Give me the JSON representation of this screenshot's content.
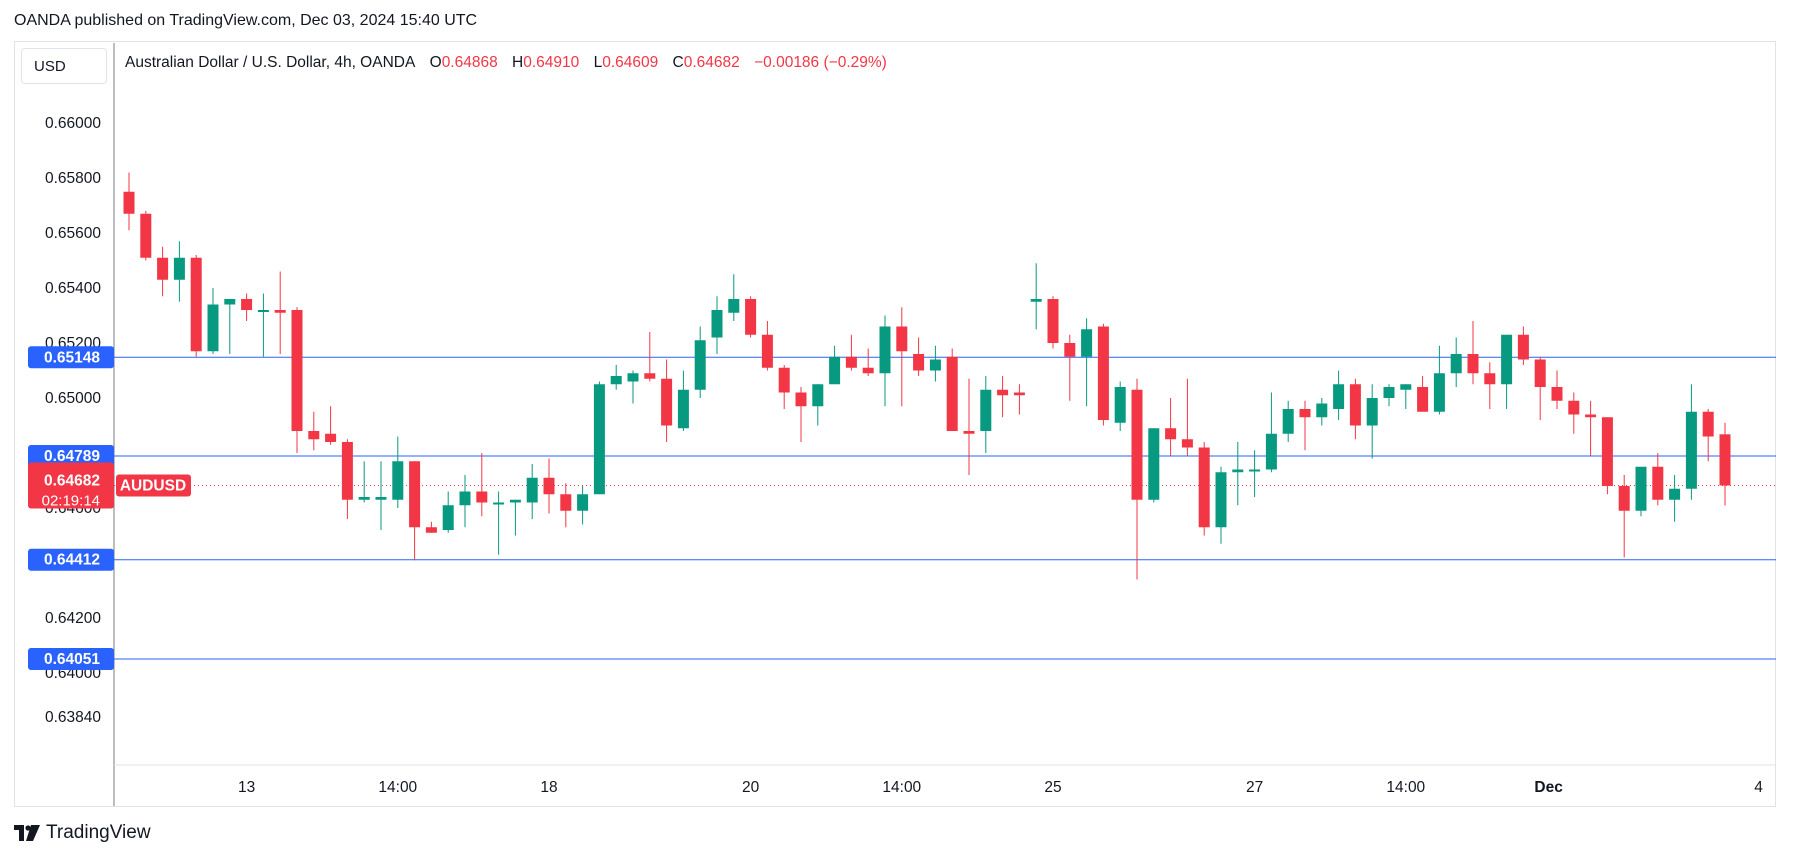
{
  "header": {
    "caption": "OANDA published on TradingView.com, Dec 03, 2024 15:40 UTC"
  },
  "toolbar": {
    "currency_label": "USD"
  },
  "legend": {
    "title": "Australian Dollar / U.S. Dollar, 4h, OANDA",
    "o_label": "O",
    "o_value": "0.64868",
    "h_label": "H",
    "h_value": "0.64910",
    "l_label": "L",
    "l_value": "0.64609",
    "c_label": "C",
    "c_value": "0.64682",
    "change": "−0.00186 (−0.29%)"
  },
  "footer": {
    "brand": "TradingView"
  },
  "colors": {
    "up": "#089981",
    "down": "#f23645",
    "hline": "#2962ff",
    "badge": "#2962ff",
    "price_badge": "#f23645",
    "axis_text": "#131722"
  },
  "chart_data": {
    "type": "candlestick",
    "symbol": "AUDUSD",
    "interval": "4h",
    "ylim": [
      0.6368,
      0.6617
    ],
    "y_ticks": [
      "0.66000",
      "0.65800",
      "0.65600",
      "0.65400",
      "0.65200",
      "0.65000",
      "0.64800",
      "0.64600",
      "0.64400",
      "0.64200",
      "0.64000",
      "0.63840"
    ],
    "y_tick_values": [
      0.66,
      0.658,
      0.656,
      0.654,
      0.652,
      0.65,
      0.648,
      0.646,
      0.644,
      0.642,
      0.64,
      0.6384
    ],
    "x_ticks": [
      {
        "label": "13",
        "index": 7,
        "bold": false
      },
      {
        "label": "14:00",
        "index": 16,
        "bold": false
      },
      {
        "label": "18",
        "index": 25,
        "bold": false
      },
      {
        "label": "20",
        "index": 37,
        "bold": false
      },
      {
        "label": "14:00",
        "index": 46,
        "bold": false
      },
      {
        "label": "25",
        "index": 55,
        "bold": false
      },
      {
        "label": "27",
        "index": 67,
        "bold": false
      },
      {
        "label": "14:00",
        "index": 76,
        "bold": false
      },
      {
        "label": "Dec",
        "index": 84.5,
        "bold": true
      },
      {
        "label": "4",
        "index": 97,
        "bold": false
      }
    ],
    "horizontal_lines": [
      {
        "price": 0.65148,
        "label": "0.65148"
      },
      {
        "price": 0.64789,
        "label": "0.64789"
      },
      {
        "price": 0.64412,
        "label": "0.64412"
      },
      {
        "price": 0.64051,
        "label": "0.64051"
      }
    ],
    "last_price": {
      "value": 0.64682,
      "label": "0.64682",
      "countdown": "02:19:14",
      "symbol_label": "AUDUSD"
    },
    "candles": [
      {
        "o": 0.6575,
        "h": 0.6582,
        "l": 0.6561,
        "c": 0.6567
      },
      {
        "o": 0.6567,
        "h": 0.6568,
        "l": 0.655,
        "c": 0.6551
      },
      {
        "o": 0.6551,
        "h": 0.6555,
        "l": 0.6537,
        "c": 0.6543
      },
      {
        "o": 0.6543,
        "h": 0.6557,
        "l": 0.6535,
        "c": 0.6551
      },
      {
        "o": 0.6551,
        "h": 0.6552,
        "l": 0.6515,
        "c": 0.6517
      },
      {
        "o": 0.6517,
        "h": 0.654,
        "l": 0.6516,
        "c": 0.6534
      },
      {
        "o": 0.6534,
        "h": 0.6536,
        "l": 0.6516,
        "c": 0.6536
      },
      {
        "o": 0.6536,
        "h": 0.6538,
        "l": 0.6528,
        "c": 0.6532
      },
      {
        "o": 0.6532,
        "h": 0.6538,
        "l": 0.6515,
        "c": 0.6532
      },
      {
        "o": 0.6532,
        "h": 0.6546,
        "l": 0.6516,
        "c": 0.6531
      },
      {
        "o": 0.6532,
        "h": 0.6533,
        "l": 0.648,
        "c": 0.6488
      },
      {
        "o": 0.6488,
        "h": 0.6495,
        "l": 0.6481,
        "c": 0.6485
      },
      {
        "o": 0.6487,
        "h": 0.6497,
        "l": 0.6483,
        "c": 0.6484
      },
      {
        "o": 0.6484,
        "h": 0.6485,
        "l": 0.6456,
        "c": 0.6463
      },
      {
        "o": 0.6463,
        "h": 0.6477,
        "l": 0.6462,
        "c": 0.6464
      },
      {
        "o": 0.6463,
        "h": 0.6477,
        "l": 0.6452,
        "c": 0.6464
      },
      {
        "o": 0.6463,
        "h": 0.6486,
        "l": 0.646,
        "c": 0.6477
      },
      {
        "o": 0.6477,
        "h": 0.6477,
        "l": 0.6441,
        "c": 0.6453
      },
      {
        "o": 0.6453,
        "h": 0.6455,
        "l": 0.6451,
        "c": 0.6451
      },
      {
        "o": 0.6452,
        "h": 0.6466,
        "l": 0.6451,
        "c": 0.6461
      },
      {
        "o": 0.6461,
        "h": 0.6472,
        "l": 0.6453,
        "c": 0.6466
      },
      {
        "o": 0.6466,
        "h": 0.648,
        "l": 0.6457,
        "c": 0.6462
      },
      {
        "o": 0.6462,
        "h": 0.6466,
        "l": 0.6443,
        "c": 0.6462
      },
      {
        "o": 0.6462,
        "h": 0.6463,
        "l": 0.645,
        "c": 0.6463
      },
      {
        "o": 0.6462,
        "h": 0.6476,
        "l": 0.6456,
        "c": 0.6471
      },
      {
        "o": 0.6471,
        "h": 0.6478,
        "l": 0.6458,
        "c": 0.6465
      },
      {
        "o": 0.6465,
        "h": 0.6469,
        "l": 0.6453,
        "c": 0.6459
      },
      {
        "o": 0.6459,
        "h": 0.6468,
        "l": 0.6454,
        "c": 0.6465
      },
      {
        "o": 0.6465,
        "h": 0.6506,
        "l": 0.6465,
        "c": 0.6505
      },
      {
        "o": 0.6505,
        "h": 0.6512,
        "l": 0.6503,
        "c": 0.6508
      },
      {
        "o": 0.6506,
        "h": 0.651,
        "l": 0.6498,
        "c": 0.6509
      },
      {
        "o": 0.6509,
        "h": 0.6524,
        "l": 0.6506,
        "c": 0.6507
      },
      {
        "o": 0.6507,
        "h": 0.6514,
        "l": 0.6484,
        "c": 0.649
      },
      {
        "o": 0.6489,
        "h": 0.651,
        "l": 0.6488,
        "c": 0.6503
      },
      {
        "o": 0.6503,
        "h": 0.6526,
        "l": 0.65,
        "c": 0.6521
      },
      {
        "o": 0.6522,
        "h": 0.6537,
        "l": 0.6516,
        "c": 0.6532
      },
      {
        "o": 0.6531,
        "h": 0.6545,
        "l": 0.6528,
        "c": 0.6536
      },
      {
        "o": 0.6536,
        "h": 0.6537,
        "l": 0.6522,
        "c": 0.6523
      },
      {
        "o": 0.6523,
        "h": 0.6528,
        "l": 0.651,
        "c": 0.6511
      },
      {
        "o": 0.6511,
        "h": 0.6512,
        "l": 0.6496,
        "c": 0.6502
      },
      {
        "o": 0.6502,
        "h": 0.6504,
        "l": 0.6484,
        "c": 0.6497
      },
      {
        "o": 0.6497,
        "h": 0.6505,
        "l": 0.649,
        "c": 0.6505
      },
      {
        "o": 0.6505,
        "h": 0.6519,
        "l": 0.6505,
        "c": 0.6515
      },
      {
        "o": 0.6515,
        "h": 0.6523,
        "l": 0.651,
        "c": 0.6511
      },
      {
        "o": 0.6511,
        "h": 0.6518,
        "l": 0.6508,
        "c": 0.6509
      },
      {
        "o": 0.6509,
        "h": 0.653,
        "l": 0.6497,
        "c": 0.6526
      },
      {
        "o": 0.6526,
        "h": 0.6533,
        "l": 0.6497,
        "c": 0.6517
      },
      {
        "o": 0.6516,
        "h": 0.6522,
        "l": 0.6508,
        "c": 0.651
      },
      {
        "o": 0.651,
        "h": 0.6519,
        "l": 0.6506,
        "c": 0.6514
      },
      {
        "o": 0.6515,
        "h": 0.6518,
        "l": 0.6488,
        "c": 0.6488
      },
      {
        "o": 0.6488,
        "h": 0.6507,
        "l": 0.6472,
        "c": 0.6487
      },
      {
        "o": 0.6488,
        "h": 0.6508,
        "l": 0.648,
        "c": 0.6503
      },
      {
        "o": 0.6503,
        "h": 0.6508,
        "l": 0.6493,
        "c": 0.6501
      },
      {
        "o": 0.6502,
        "h": 0.6505,
        "l": 0.6494,
        "c": 0.6501
      },
      {
        "o": 0.6535,
        "h": 0.6549,
        "l": 0.6525,
        "c": 0.6536
      },
      {
        "o": 0.6536,
        "h": 0.6537,
        "l": 0.6518,
        "c": 0.652
      },
      {
        "o": 0.652,
        "h": 0.6523,
        "l": 0.6499,
        "c": 0.6515
      },
      {
        "o": 0.6515,
        "h": 0.6529,
        "l": 0.6497,
        "c": 0.6525
      },
      {
        "o": 0.6526,
        "h": 0.6527,
        "l": 0.649,
        "c": 0.6492
      },
      {
        "o": 0.6491,
        "h": 0.6506,
        "l": 0.6488,
        "c": 0.6504
      },
      {
        "o": 0.6503,
        "h": 0.6507,
        "l": 0.6434,
        "c": 0.6463
      },
      {
        "o": 0.6463,
        "h": 0.6489,
        "l": 0.6462,
        "c": 0.6489
      },
      {
        "o": 0.6489,
        "h": 0.65,
        "l": 0.6479,
        "c": 0.6485
      },
      {
        "o": 0.6485,
        "h": 0.6507,
        "l": 0.6479,
        "c": 0.6482
      },
      {
        "o": 0.6482,
        "h": 0.6484,
        "l": 0.645,
        "c": 0.6453
      },
      {
        "o": 0.6453,
        "h": 0.6475,
        "l": 0.6447,
        "c": 0.6473
      },
      {
        "o": 0.6473,
        "h": 0.6484,
        "l": 0.6461,
        "c": 0.6474
      },
      {
        "o": 0.6474,
        "h": 0.6481,
        "l": 0.6464,
        "c": 0.6474
      },
      {
        "o": 0.6474,
        "h": 0.6502,
        "l": 0.6473,
        "c": 0.6487
      },
      {
        "o": 0.6487,
        "h": 0.6499,
        "l": 0.6484,
        "c": 0.6496
      },
      {
        "o": 0.6496,
        "h": 0.6499,
        "l": 0.6481,
        "c": 0.6493
      },
      {
        "o": 0.6493,
        "h": 0.65,
        "l": 0.649,
        "c": 0.6498
      },
      {
        "o": 0.6496,
        "h": 0.651,
        "l": 0.6492,
        "c": 0.6505
      },
      {
        "o": 0.6505,
        "h": 0.6507,
        "l": 0.6485,
        "c": 0.649
      },
      {
        "o": 0.649,
        "h": 0.6505,
        "l": 0.6478,
        "c": 0.65
      },
      {
        "o": 0.65,
        "h": 0.6505,
        "l": 0.6497,
        "c": 0.6504
      },
      {
        "o": 0.6503,
        "h": 0.6505,
        "l": 0.6496,
        "c": 0.6505
      },
      {
        "o": 0.6504,
        "h": 0.6508,
        "l": 0.6497,
        "c": 0.6495
      },
      {
        "o": 0.6495,
        "h": 0.6519,
        "l": 0.6494,
        "c": 0.6509
      },
      {
        "o": 0.6509,
        "h": 0.6522,
        "l": 0.6504,
        "c": 0.6516
      },
      {
        "o": 0.6516,
        "h": 0.6528,
        "l": 0.6505,
        "c": 0.6509
      },
      {
        "o": 0.6509,
        "h": 0.6513,
        "l": 0.6496,
        "c": 0.6505
      },
      {
        "o": 0.6505,
        "h": 0.6523,
        "l": 0.6496,
        "c": 0.6523
      },
      {
        "o": 0.6523,
        "h": 0.6526,
        "l": 0.6512,
        "c": 0.6514
      },
      {
        "o": 0.6514,
        "h": 0.6515,
        "l": 0.6492,
        "c": 0.6504
      },
      {
        "o": 0.6504,
        "h": 0.651,
        "l": 0.6496,
        "c": 0.6499
      },
      {
        "o": 0.6499,
        "h": 0.6502,
        "l": 0.6487,
        "c": 0.6494
      },
      {
        "o": 0.6494,
        "h": 0.6499,
        "l": 0.6479,
        "c": 0.6493
      },
      {
        "o": 0.6493,
        "h": 0.6493,
        "l": 0.6465,
        "c": 0.6468
      },
      {
        "o": 0.6468,
        "h": 0.6472,
        "l": 0.6442,
        "c": 0.6459
      },
      {
        "o": 0.6459,
        "h": 0.6474,
        "l": 0.6457,
        "c": 0.6475
      },
      {
        "o": 0.6475,
        "h": 0.648,
        "l": 0.6461,
        "c": 0.6463
      },
      {
        "o": 0.6463,
        "h": 0.6472,
        "l": 0.6455,
        "c": 0.6467
      },
      {
        "o": 0.6467,
        "h": 0.6505,
        "l": 0.6463,
        "c": 0.6495
      },
      {
        "o": 0.6495,
        "h": 0.6496,
        "l": 0.6477,
        "c": 0.6486
      },
      {
        "o": 0.64868,
        "h": 0.6491,
        "l": 0.64609,
        "c": 0.64682
      }
    ]
  }
}
